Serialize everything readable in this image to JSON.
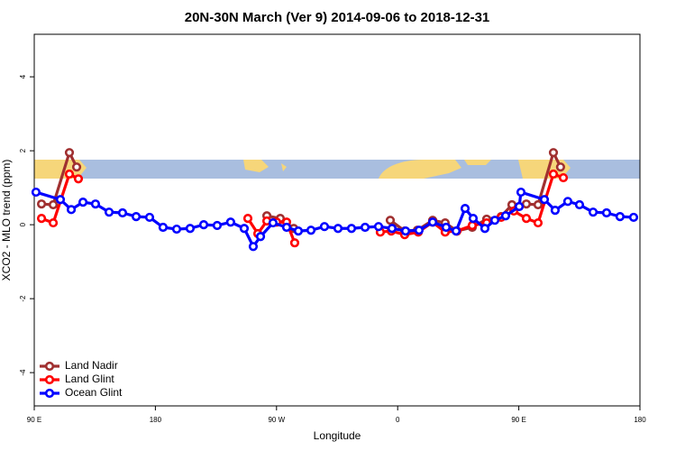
{
  "chart_data": {
    "type": "line",
    "title": "20N-30N March (Ver 9)   2014-09-06 to 2018-12-31",
    "x_label": "Longitude",
    "y_label": "XCO2 - MLO trend (ppm)",
    "xlim": [
      90,
      540
    ],
    "xticks": [
      {
        "value": 90,
        "label": "90 E"
      },
      {
        "value": 180,
        "label": "180"
      },
      {
        "value": 270,
        "label": "90 W"
      },
      {
        "value": 360,
        "label": "0"
      },
      {
        "value": 450,
        "label": "90 E"
      },
      {
        "value": 540,
        "label": "180"
      }
    ],
    "ylim": [
      -4.9,
      5.15
    ],
    "yticks": [
      -4,
      -2,
      0,
      2,
      4
    ],
    "legend": "bottom-left",
    "series": [
      {
        "name": "Land Nadir",
        "color": "#a03030",
        "x": [
          95.4,
          104.1,
          116.1,
          121.5,
          null,
          262.8,
          272.8,
          282.8,
          null,
          354.5,
          365.2,
          374.6,
          386.0,
          395.3,
          404.0,
          415.4,
          426.1,
          436.9,
          444.9,
          455.6,
          464.3,
          475.7,
          481.0
        ],
        "values": [
          0.56,
          0.54,
          1.95,
          1.56,
          null,
          0.24,
          0.17,
          -0.1,
          null,
          0.12,
          -0.17,
          -0.15,
          0.12,
          0.05,
          -0.17,
          -0.07,
          0.15,
          0.22,
          0.54,
          0.56,
          0.54,
          1.95,
          1.56
        ]
      },
      {
        "name": "Land Glint",
        "color": "#ff0000",
        "x": [
          95.4,
          104.1,
          116.1,
          122.8,
          null,
          248.7,
          256.1,
          262.8,
          270.1,
          277.5,
          283.5,
          null,
          347.1,
          355.2,
          365.2,
          375.3,
          386.0,
          395.3,
          404.0,
          415.4,
          426.1,
          436.9,
          446.3,
          455.6,
          464.3,
          475.7,
          483.1
        ],
        "values": [
          0.17,
          0.05,
          1.37,
          1.24,
          null,
          0.17,
          -0.24,
          0.1,
          0.07,
          0.07,
          -0.49,
          null,
          -0.2,
          -0.17,
          -0.27,
          -0.2,
          0.07,
          -0.2,
          -0.17,
          -0.02,
          0.05,
          0.2,
          0.37,
          0.17,
          0.05,
          1.37,
          1.27
        ]
      },
      {
        "name": "Ocean Glint",
        "color": "#0000ff",
        "x": [
          91.3,
          109.4,
          117.5,
          126.2,
          135.5,
          145.6,
          155.6,
          165.7,
          175.7,
          185.7,
          195.8,
          205.8,
          215.9,
          225.9,
          235.9,
          246.0,
          252.7,
          258.1,
          267.4,
          277.5,
          286.2,
          295.6,
          305.6,
          315.7,
          325.7,
          335.8,
          345.8,
          355.8,
          365.9,
          375.9,
          386.0,
          396.0,
          403.4,
          410.1,
          416.1,
          424.8,
          432.2,
          440.2,
          450.3,
          451.6,
          469.0,
          477.0,
          486.4,
          495.1,
          505.2,
          515.2,
          525.2,
          535.3
        ],
        "values": [
          0.88,
          0.68,
          0.41,
          0.61,
          0.56,
          0.34,
          0.32,
          0.22,
          0.2,
          -0.07,
          -0.12,
          -0.1,
          0.0,
          -0.02,
          0.07,
          -0.1,
          -0.59,
          -0.32,
          0.05,
          -0.07,
          -0.17,
          -0.15,
          -0.05,
          -0.1,
          -0.1,
          -0.07,
          -0.05,
          -0.1,
          -0.17,
          -0.15,
          0.07,
          -0.07,
          -0.17,
          0.44,
          0.17,
          -0.1,
          0.12,
          0.24,
          0.49,
          0.88,
          0.68,
          0.39,
          0.63,
          0.54,
          0.34,
          0.32,
          0.22,
          0.2
        ]
      }
    ]
  }
}
